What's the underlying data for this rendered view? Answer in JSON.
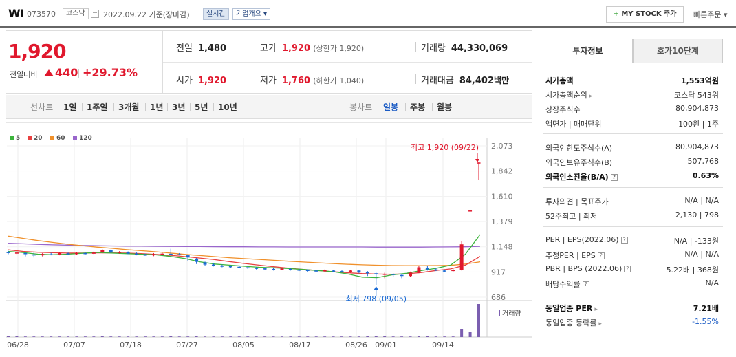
{
  "header": {
    "stock_name": "WI",
    "code": "073570",
    "market": "코스닥",
    "date": "2022.09.22  기준(장마감)",
    "realtime_label": "실시간",
    "overview_label": "기업개요 ▾",
    "mystock_plus": "+",
    "mystock_label": "MY STOCK 추가",
    "quick_order_label": "빠른주문 ▾"
  },
  "price": {
    "current": "1,920",
    "change_label": "전일대비",
    "change": "440",
    "rate": "+29.73%"
  },
  "stats": {
    "prev_close_label": "전일",
    "prev_close": "1,480",
    "high_label": "고가",
    "high": "1,920",
    "high_limit": "(상한가 1,920)",
    "volume_label": "거래량",
    "volume": "44,330,069",
    "open_label": "시가",
    "open": "1,920",
    "low_label": "저가",
    "low": "1,760",
    "low_limit": "(하한가 1,040)",
    "amount_label": "거래대금",
    "amount": "84,402",
    "amount_unit": "백만"
  },
  "period_bar": {
    "line_chart_label": "선차트",
    "periods": [
      "1일",
      "1주일",
      "3개월",
      "1년",
      "3년",
      "5년",
      "10년"
    ],
    "candle_label": "봉차트",
    "candles": [
      "일봉",
      "주봉",
      "월봉"
    ],
    "active_candle": "일봉"
  },
  "chart_data": {
    "type": "candlestick",
    "legend": [
      "5",
      "20",
      "60",
      "120"
    ],
    "legend_colors": [
      "#3cb43c",
      "#e84040",
      "#f0902a",
      "#9966cc"
    ],
    "yticks": [
      "2,073",
      "1,842",
      "1,610",
      "1,379",
      "1,148",
      "917",
      "686"
    ],
    "ylim": [
      686,
      2073
    ],
    "xticks": [
      "06/28",
      "07/07",
      "07/18",
      "07/27",
      "08/05",
      "08/17",
      "08/26",
      "09/01",
      "09/14"
    ],
    "annotation_high": "최고 1,920 (09/22)",
    "annotation_low": "최저 798 (09/05)",
    "volume_label": "거래량",
    "up_color": "#e0182d",
    "down_color": "#1a6ad4",
    "ma120": [
      1180,
      1175,
      1170,
      1166,
      1163,
      1160,
      1158,
      1156,
      1154,
      1153,
      1152,
      1151,
      1150,
      1150,
      1149,
      1148,
      1148,
      1147,
      1147,
      1146,
      1146,
      1146,
      1146,
      1146,
      1146,
      1145,
      1145,
      1145,
      1145,
      1146,
      1147,
      1148,
      1152
    ],
    "ma60": [
      1245,
      1225,
      1205,
      1188,
      1172,
      1158,
      1145,
      1134,
      1122,
      1112,
      1102,
      1090,
      1078,
      1068,
      1058,
      1048,
      1040,
      1032,
      1024,
      1016,
      1008,
      1001,
      994,
      988,
      983,
      979,
      976,
      975,
      975,
      976,
      978,
      990,
      1010
    ],
    "ma20": [
      1120,
      1105,
      1098,
      1093,
      1090,
      1090,
      1092,
      1092,
      1090,
      1085,
      1078,
      1070,
      1058,
      1045,
      1030,
      1012,
      995,
      980,
      965,
      952,
      940,
      930,
      920,
      910,
      902,
      898,
      896,
      900,
      912,
      930,
      945,
      980,
      1060
    ],
    "ma5": [
      1105,
      1095,
      1080,
      1075,
      1080,
      1088,
      1095,
      1090,
      1085,
      1080,
      1075,
      1060,
      1040,
      1010,
      990,
      980,
      970,
      960,
      955,
      948,
      940,
      930,
      920,
      900,
      870,
      865,
      890,
      905,
      930,
      950,
      980,
      1080,
      1260
    ],
    "candles_data": [
      {
        "o": 1100,
        "c": 1090,
        "h": 1110,
        "l": 1080
      },
      {
        "o": 1085,
        "c": 1095,
        "h": 1105,
        "l": 1075
      },
      {
        "o": 1090,
        "c": 1080,
        "h": 1100,
        "l": 1060
      },
      {
        "o": 1078,
        "c": 1070,
        "h": 1095,
        "l": 1050
      },
      {
        "o": 1070,
        "c": 1082,
        "h": 1090,
        "l": 1060
      },
      {
        "o": 1080,
        "c": 1078,
        "h": 1092,
        "l": 1070
      },
      {
        "o": 1075,
        "c": 1090,
        "h": 1100,
        "l": 1070
      },
      {
        "o": 1088,
        "c": 1080,
        "h": 1095,
        "l": 1075
      },
      {
        "o": 1080,
        "c": 1090,
        "h": 1098,
        "l": 1075
      },
      {
        "o": 1090,
        "c": 1085,
        "h": 1100,
        "l": 1078
      },
      {
        "o": 1084,
        "c": 1095,
        "h": 1105,
        "l": 1080
      },
      {
        "o": 1095,
        "c": 1120,
        "h": 1125,
        "l": 1090
      },
      {
        "o": 1118,
        "c": 1095,
        "h": 1122,
        "l": 1090
      },
      {
        "o": 1092,
        "c": 1100,
        "h": 1108,
        "l": 1085
      },
      {
        "o": 1098,
        "c": 1085,
        "h": 1105,
        "l": 1080
      },
      {
        "o": 1086,
        "c": 1078,
        "h": 1095,
        "l": 1070
      },
      {
        "o": 1078,
        "c": 1070,
        "h": 1085,
        "l": 1065
      },
      {
        "o": 1070,
        "c": 1080,
        "h": 1090,
        "l": 1062
      },
      {
        "o": 1080,
        "c": 1085,
        "h": 1092,
        "l": 1072
      },
      {
        "o": 1084,
        "c": 1082,
        "h": 1130,
        "l": 1075
      },
      {
        "o": 1080,
        "c": 1075,
        "h": 1090,
        "l": 1070
      },
      {
        "o": 1070,
        "c": 1050,
        "h": 1075,
        "l": 1020
      },
      {
        "o": 1040,
        "c": 1010,
        "h": 1045,
        "l": 990
      },
      {
        "o": 1005,
        "c": 985,
        "h": 1012,
        "l": 970
      },
      {
        "o": 985,
        "c": 978,
        "h": 995,
        "l": 968
      },
      {
        "o": 975,
        "c": 970,
        "h": 985,
        "l": 960
      },
      {
        "o": 970,
        "c": 965,
        "h": 978,
        "l": 955
      },
      {
        "o": 965,
        "c": 960,
        "h": 975,
        "l": 950
      },
      {
        "o": 960,
        "c": 955,
        "h": 968,
        "l": 945
      },
      {
        "o": 955,
        "c": 950,
        "h": 962,
        "l": 940
      },
      {
        "o": 950,
        "c": 945,
        "h": 958,
        "l": 938
      },
      {
        "o": 945,
        "c": 940,
        "h": 952,
        "l": 930
      },
      {
        "o": 940,
        "c": 948,
        "h": 955,
        "l": 935
      },
      {
        "o": 945,
        "c": 938,
        "h": 950,
        "l": 930
      },
      {
        "o": 938,
        "c": 935,
        "h": 948,
        "l": 925
      },
      {
        "o": 935,
        "c": 930,
        "h": 942,
        "l": 920
      },
      {
        "o": 930,
        "c": 925,
        "h": 938,
        "l": 918
      },
      {
        "o": 925,
        "c": 932,
        "h": 940,
        "l": 915
      },
      {
        "o": 930,
        "c": 925,
        "h": 935,
        "l": 918
      },
      {
        "o": 925,
        "c": 920,
        "h": 932,
        "l": 912
      },
      {
        "o": 918,
        "c": 930,
        "h": 935,
        "l": 910
      },
      {
        "o": 930,
        "c": 915,
        "h": 935,
        "l": 905
      },
      {
        "o": 915,
        "c": 905,
        "h": 925,
        "l": 880
      },
      {
        "o": 905,
        "c": 895,
        "h": 910,
        "l": 798
      },
      {
        "o": 895,
        "c": 900,
        "h": 910,
        "l": 860
      },
      {
        "o": 900,
        "c": 890,
        "h": 905,
        "l": 870
      },
      {
        "o": 890,
        "c": 880,
        "h": 898,
        "l": 860
      },
      {
        "o": 880,
        "c": 910,
        "h": 920,
        "l": 870
      },
      {
        "o": 910,
        "c": 960,
        "h": 975,
        "l": 905
      },
      {
        "o": 955,
        "c": 940,
        "h": 970,
        "l": 930
      },
      {
        "o": 940,
        "c": 930,
        "h": 950,
        "l": 925
      },
      {
        "o": 930,
        "c": 925,
        "h": 940,
        "l": 915
      },
      {
        "o": 925,
        "c": 935,
        "h": 945,
        "l": 918
      },
      {
        "o": 935,
        "c": 1170,
        "h": 1200,
        "l": 930
      },
      {
        "o": 1480,
        "c": 1480,
        "h": 1480,
        "l": 1480
      },
      {
        "o": 1920,
        "c": 1920,
        "h": 1920,
        "l": 1760
      }
    ],
    "volumes": [
      0.4,
      0.4,
      0.3,
      0.3,
      0.3,
      0.3,
      0.3,
      0.3,
      0.3,
      0.3,
      0.3,
      0.4,
      0.3,
      0.3,
      0.3,
      0.3,
      0.3,
      0.3,
      0.3,
      0.5,
      0.3,
      0.3,
      0.4,
      0.3,
      0.3,
      0.3,
      0.3,
      0.3,
      0.3,
      0.3,
      0.3,
      0.3,
      0.3,
      0.3,
      0.3,
      0.3,
      0.3,
      0.3,
      0.3,
      0.3,
      0.3,
      0.3,
      0.4,
      0.6,
      0.4,
      0.3,
      0.3,
      0.3,
      0.5,
      0.4,
      0.3,
      0.3,
      0.3,
      4.5,
      3.0,
      18.0
    ]
  },
  "right_panel": {
    "tabs": [
      "투자정보",
      "호가10단계"
    ],
    "rows": [
      {
        "l": "시가총액",
        "r": "1,553억원",
        "bold": true
      },
      {
        "l": "시가총액순위",
        "r": "코스닥 543위",
        "caret": true
      },
      {
        "l": "상장주식수",
        "r": "80,904,873"
      },
      {
        "l": "액면가 | 매매단위",
        "r": "100원 | 1주"
      },
      {
        "l": "외국인한도주식수(A)",
        "r": "80,904,873"
      },
      {
        "l": "외국인보유주식수(B)",
        "r": "507,768"
      },
      {
        "l": "외국인소진율(B/A)",
        "r": "0.63%",
        "bold": true,
        "q": true
      },
      {
        "l": "투자의견 | 목표주가",
        "r": "N/A | N/A"
      },
      {
        "l": "52주최고 | 최저",
        "r": "2,130 | 798"
      },
      {
        "l": "PER | EPS(2022.06)",
        "r": "N/A | -133원",
        "q": true
      },
      {
        "l": "추정PER | EPS",
        "r": "N/A | N/A",
        "q": true
      },
      {
        "l": "PBR | BPS (2022.06)",
        "r": "5.22배 | 368원",
        "q": true
      },
      {
        "l": "배당수익률",
        "r": "N/A",
        "q": true
      },
      {
        "l": "동일업종 PER",
        "r": "7.21배",
        "bold": true,
        "caret": true
      },
      {
        "l": "동일업종 등락률",
        "r": "-1.55%",
        "blue": true,
        "caret": true
      }
    ]
  }
}
